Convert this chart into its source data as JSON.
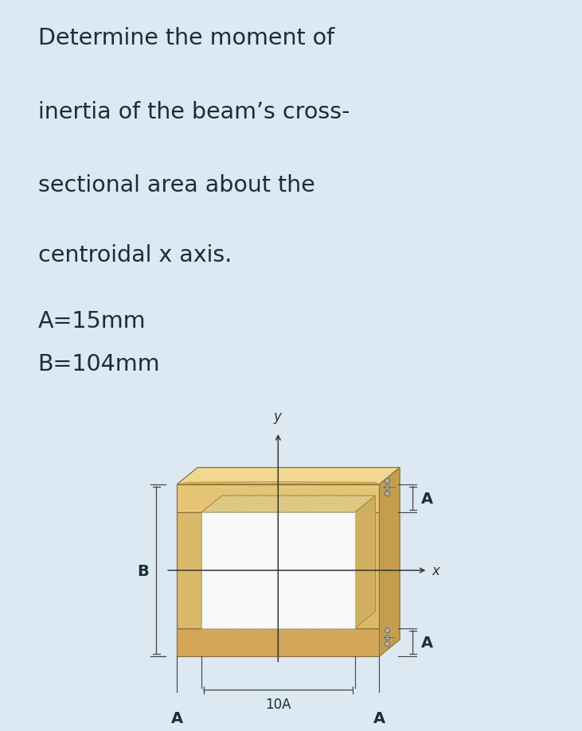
{
  "bg_color": "#dce8f2",
  "diagram_bg": "#f2f4f6",
  "title_lines": [
    "Determine the moment of",
    "inertia of the beam’s cross-",
    "sectional area about the",
    "centroidal x axis."
  ],
  "param_A": "A=15mm",
  "param_B": "B=104mm",
  "title_fontsize": 20.5,
  "param_fontsize": 20.5,
  "text_color": "#1a2e35",
  "wood_front_top": "#e8c87a",
  "wood_front_mid": "#dbb96a",
  "wood_front_bot": "#d4a85a",
  "wood_top_face": "#f0d890",
  "wood_right_face": "#c8a050",
  "wood_inner": "#f0dca0",
  "wood_grain": "#c8a040",
  "hollow_color": "#ffffff",
  "edge_color": "#8a7040",
  "dim_color": "#444444",
  "screw_color": "#909090"
}
